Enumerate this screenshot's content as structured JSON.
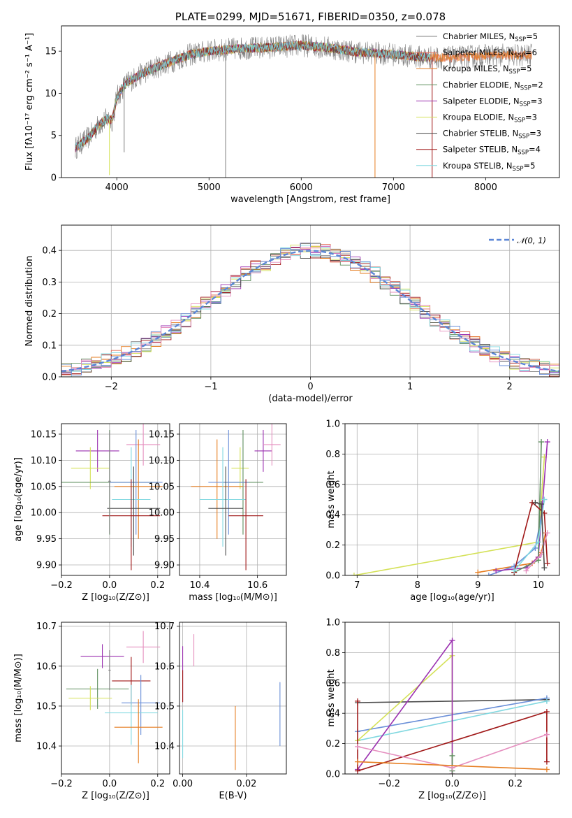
{
  "colors": {
    "chabrier_miles": "#808080",
    "salpeter_miles": "#e2725b",
    "kroupa_miles": "#e67e22",
    "chabrier_elodie": "#5f8f5f",
    "salpeter_elodie": "#9b30b0",
    "kroupa_elodie": "#d4e157",
    "chabrier_stelib": "#4a4a4a",
    "salpeter_stelib": "#a01818",
    "kroupa_stelib": "#80d8e0",
    "blue": "#6a8fd8",
    "pink": "#e58fbf",
    "normal": "#5b86d6"
  },
  "chart_data": [
    {
      "id": "spectrum",
      "type": "line",
      "title": "PLATE=0299, MJD=51671, FIBERID=0350, z=0.078",
      "xlabel": "wavelength [Angstrom, rest frame]",
      "ylabel": "Flux [fλ10⁻¹⁷ erg cm⁻² s⁻¹ A⁻¹]",
      "xlim": [
        3400,
        8800
      ],
      "ylim": [
        0,
        18
      ],
      "xticks": [
        "4000",
        "5000",
        "6000",
        "7000",
        "8000"
      ],
      "yticks": [
        "0",
        "5",
        "10",
        "15"
      ],
      "legend_position": "upper right",
      "legend": [
        {
          "name_base": "Chabrier MILES, N",
          "sub": "SSP",
          "val": "=5",
          "color": "chabrier_miles"
        },
        {
          "name_base": "Salpeter MILES, N",
          "sub": "SSP",
          "val": "=6",
          "color": "salpeter_miles"
        },
        {
          "name_base": "Kroupa MILES, N",
          "sub": "SSP",
          "val": "=5",
          "color": "kroupa_miles"
        },
        {
          "name_base": "Chabrier ELODIE, N",
          "sub": "SSP",
          "val": "=2",
          "color": "chabrier_elodie"
        },
        {
          "name_base": "Salpeter ELODIE, N",
          "sub": "SSP",
          "val": "=3",
          "color": "salpeter_elodie"
        },
        {
          "name_base": "Kroupa ELODIE, N",
          "sub": "SSP",
          "val": "=3",
          "color": "kroupa_elodie"
        },
        {
          "name_base": "Chabrier STELIB, N",
          "sub": "SSP",
          "val": "=3",
          "color": "chabrier_stelib"
        },
        {
          "name_base": "Salpeter STELIB, N",
          "sub": "SSP",
          "val": "=4",
          "color": "salpeter_stelib"
        },
        {
          "name_base": "Kroupa STELIB, N",
          "sub": "SSP",
          "val": "=5",
          "color": "kroupa_stelib"
        }
      ],
      "continuum_nodes": [
        [
          3550,
          3.5
        ],
        [
          3700,
          4.8
        ],
        [
          3800,
          6.2
        ],
        [
          3900,
          7.0
        ],
        [
          3950,
          6.8
        ],
        [
          4000,
          9.5
        ],
        [
          4100,
          11.2
        ],
        [
          4300,
          12.5
        ],
        [
          4500,
          13.4
        ],
        [
          4800,
          14.6
        ],
        [
          5000,
          15.0
        ],
        [
          5300,
          15.3
        ],
        [
          5600,
          15.4
        ],
        [
          6000,
          15.7
        ],
        [
          6300,
          15.4
        ],
        [
          6600,
          14.9
        ],
        [
          7000,
          14.6
        ],
        [
          7300,
          14.3
        ],
        [
          7600,
          14.2
        ],
        [
          8000,
          14.5
        ],
        [
          8500,
          14.5
        ]
      ],
      "glitches": [
        {
          "x": 5180,
          "y": 0,
          "color": "chabrier_miles"
        },
        {
          "x": 6800,
          "y": 0,
          "color": "kroupa_miles"
        },
        {
          "x": 7420,
          "y": 0,
          "color": "salpeter_stelib"
        },
        {
          "x": 3920,
          "y": 0.3,
          "color": "kroupa_elodie"
        },
        {
          "x": 4080,
          "y": 3.0,
          "color": "chabrier_miles"
        }
      ]
    },
    {
      "id": "residuals",
      "type": "histogram",
      "xlabel": "(data-model)/error",
      "ylabel": "Normed distribution",
      "xlim": [
        -2.5,
        2.5
      ],
      "ylim": [
        0,
        0.48
      ],
      "xticks": [
        "−2",
        "−1",
        "0",
        "1",
        "2"
      ],
      "yticks": [
        "0.0",
        "0.1",
        "0.2",
        "0.3",
        "0.4"
      ],
      "legend": {
        "label": "𝒩(0, 1)"
      },
      "bin_width": 0.1,
      "histogram_colors": [
        "chabrier_miles",
        "salpeter_miles",
        "kroupa_miles",
        "chabrier_elodie",
        "salpeter_elodie",
        "kroupa_elodie",
        "chabrier_stelib",
        "salpeter_stelib",
        "kroupa_stelib",
        "blue",
        "pink"
      ]
    },
    {
      "id": "age_vs_z",
      "type": "scatter",
      "xlabel": "Z [log₁₀(Z/Z⊙)]",
      "ylabel": "age  [log₁₀(age/yr)]",
      "xlim": [
        -0.2,
        0.25
      ],
      "ylim": [
        9.88,
        10.17
      ],
      "xticks": [
        "−0.2",
        "0.0",
        "0.2"
      ],
      "yticks": [
        "9.90",
        "9.95",
        "10.00",
        "10.05",
        "10.10",
        "10.15"
      ],
      "points": [
        {
          "x": -0.05,
          "y": 10.118,
          "xerr": 0.09,
          "yerr": [
            0.04,
            0.04
          ],
          "color": "salpeter_elodie"
        },
        {
          "x": -0.08,
          "y": 10.085,
          "xerr": 0.08,
          "yerr": [
            0.04,
            0.04
          ],
          "color": "kroupa_elodie"
        },
        {
          "x": 0.14,
          "y": 10.13,
          "xerr": 0.07,
          "yerr": [
            0.04,
            0.04
          ],
          "color": "pink"
        },
        {
          "x": 0.0,
          "y": 10.058,
          "xerr": 0.2,
          "yerr": [
            0.1,
            0.1
          ],
          "color": "chabrier_elodie"
        },
        {
          "x": 0.11,
          "y": 10.058,
          "xerr": 0.11,
          "yerr": [
            0.1,
            0.1
          ],
          "color": "blue"
        },
        {
          "x": 0.12,
          "y": 10.05,
          "xerr": 0.1,
          "yerr": [
            0.1,
            0.09
          ],
          "color": "kroupa_miles"
        },
        {
          "x": 0.09,
          "y": 10.025,
          "xerr": 0.08,
          "yerr": [
            0.09,
            0.1
          ],
          "color": "kroupa_stelib"
        },
        {
          "x": 0.1,
          "y": 10.008,
          "xerr": 0.11,
          "yerr": [
            0.09,
            0.08
          ],
          "color": "chabrier_stelib"
        },
        {
          "x": 0.09,
          "y": 9.994,
          "xerr": 0.12,
          "yerr": [
            0.104,
            0.07
          ],
          "color": "salpeter_stelib"
        },
        {
          "x": 0.0,
          "y": 10.06,
          "xerr": 0.005,
          "yerr": [
            0.1,
            0.095
          ],
          "color": "chabrier_miles"
        }
      ]
    },
    {
      "id": "age_vs_mass",
      "type": "scatter",
      "xlabel": "mass [log₁₀(M/M⊙)]",
      "xlim": [
        10.33,
        10.7
      ],
      "ylim": [
        9.88,
        10.17
      ],
      "xticks": [
        "10.4",
        "10.6"
      ],
      "yticks": [
        "9.90",
        "9.95",
        "10.00",
        "10.05",
        "10.10",
        "10.15"
      ],
      "points": [
        {
          "x": 10.62,
          "y": 10.118,
          "xerr": 0.03,
          "yerr": [
            0.04,
            0.04
          ],
          "color": "salpeter_elodie"
        },
        {
          "x": 10.65,
          "y": 10.13,
          "xerr": 0.03,
          "yerr": [
            0.04,
            0.04
          ],
          "color": "pink"
        },
        {
          "x": 10.54,
          "y": 10.085,
          "xerr": 0.03,
          "yerr": [
            0.04,
            0.04
          ],
          "color": "kroupa_elodie"
        },
        {
          "x": 10.55,
          "y": 10.058,
          "xerr": 0.07,
          "yerr": [
            0.1,
            0.1
          ],
          "color": "chabrier_elodie"
        },
        {
          "x": 10.46,
          "y": 10.05,
          "xerr": 0.09,
          "yerr": [
            0.1,
            0.09
          ],
          "color": "kroupa_miles"
        },
        {
          "x": 10.5,
          "y": 10.058,
          "xerr": 0.07,
          "yerr": [
            0.1,
            0.1
          ],
          "color": "blue"
        },
        {
          "x": 10.48,
          "y": 10.025,
          "xerr": 0.08,
          "yerr": [
            0.09,
            0.1
          ],
          "color": "kroupa_stelib"
        },
        {
          "x": 10.49,
          "y": 10.008,
          "xerr": 0.06,
          "yerr": [
            0.09,
            0.08
          ],
          "color": "chabrier_stelib"
        },
        {
          "x": 10.56,
          "y": 9.994,
          "xerr": 0.06,
          "yerr": [
            0.104,
            0.07
          ],
          "color": "salpeter_stelib"
        }
      ]
    },
    {
      "id": "weight_vs_age",
      "type": "line",
      "xlabel": "age  [log₁₀(age/yr)]",
      "ylabel": "mass weight",
      "xlim": [
        6.8,
        10.35
      ],
      "ylim": [
        0,
        1
      ],
      "xticks": [
        "7",
        "8",
        "9",
        "10"
      ],
      "yticks": [
        "0.0",
        "0.2",
        "0.4",
        "0.6",
        "0.8",
        "1.0"
      ],
      "series": [
        {
          "color": "kroupa_elodie",
          "points": [
            [
              6.95,
              0.0
            ],
            [
              10.0,
              0.22
            ],
            [
              10.1,
              0.78
            ]
          ]
        },
        {
          "color": "kroupa_miles",
          "points": [
            [
              9.0,
              0.02
            ],
            [
              9.9,
              0.08
            ],
            [
              10.05,
              0.15
            ],
            [
              10.12,
              0.28
            ]
          ]
        },
        {
          "color": "blue",
          "points": [
            [
              9.18,
              0.0
            ],
            [
              9.6,
              0.06
            ],
            [
              9.95,
              0.18
            ],
            [
              10.1,
              0.5
            ]
          ]
        },
        {
          "color": "salpeter_elodie",
          "points": [
            [
              9.3,
              0.03
            ],
            [
              9.8,
              0.05
            ],
            [
              10.0,
              0.12
            ],
            [
              10.15,
              0.88
            ]
          ]
        },
        {
          "color": "chabrier_elodie",
          "points": [
            [
              9.6,
              0.02
            ],
            [
              10.0,
              0.1
            ],
            [
              10.05,
              0.88
            ]
          ]
        },
        {
          "color": "salpeter_stelib",
          "points": [
            [
              9.6,
              0.02
            ],
            [
              9.9,
              0.48
            ],
            [
              10.1,
              0.41
            ],
            [
              10.15,
              0.08
            ]
          ]
        },
        {
          "color": "kroupa_stelib",
          "points": [
            [
              9.6,
              0.03
            ],
            [
              10.0,
              0.22
            ],
            [
              10.1,
              0.5
            ]
          ]
        },
        {
          "color": "pink",
          "points": [
            [
              9.8,
              0.03
            ],
            [
              10.05,
              0.14
            ],
            [
              10.15,
              0.28
            ]
          ]
        },
        {
          "color": "chabrier_stelib",
          "points": [
            [
              9.95,
              0.48
            ],
            [
              10.05,
              0.47
            ],
            [
              10.1,
              0.05
            ]
          ]
        }
      ]
    },
    {
      "id": "mass_vs_z",
      "type": "scatter",
      "xlabel": "Z [log₁₀(Z/Z⊙)]",
      "ylabel": "mass [log₁₀(M/M⊙)]",
      "xlim": [
        -0.2,
        0.25
      ],
      "ylim": [
        10.33,
        10.71
      ],
      "xticks": [
        "−0.2",
        "0.0",
        "0.2"
      ],
      "yticks": [
        "10.4",
        "10.5",
        "10.6",
        "10.7"
      ],
      "points": [
        {
          "x": -0.03,
          "y": 10.625,
          "xerr": 0.09,
          "yerr": [
            0.03,
            0.03
          ],
          "color": "salpeter_elodie"
        },
        {
          "x": 0.14,
          "y": 10.648,
          "xerr": 0.07,
          "yerr": [
            0.04,
            0.04
          ],
          "color": "pink"
        },
        {
          "x": 0.09,
          "y": 10.563,
          "xerr": 0.08,
          "yerr": [
            0.06,
            0.06
          ],
          "color": "salpeter_stelib"
        },
        {
          "x": -0.05,
          "y": 10.543,
          "xerr": 0.13,
          "yerr": [
            0.05,
            0.05
          ],
          "color": "chabrier_elodie"
        },
        {
          "x": -0.08,
          "y": 10.52,
          "xerr": 0.09,
          "yerr": [
            0.03,
            0.03
          ],
          "color": "kroupa_elodie"
        },
        {
          "x": 0.13,
          "y": 10.508,
          "xerr": 0.08,
          "yerr": [
            0.08,
            0.07
          ],
          "color": "blue"
        },
        {
          "x": 0.09,
          "y": 10.483,
          "xerr": 0.11,
          "yerr": [
            0.08,
            0.07
          ],
          "color": "kroupa_stelib"
        },
        {
          "x": 0.12,
          "y": 10.447,
          "xerr": 0.1,
          "yerr": [
            0.09,
            0.07
          ],
          "color": "kroupa_miles"
        },
        {
          "x": 0.0,
          "y": 10.59,
          "xerr": 0.005,
          "yerr": [
            0.05,
            0.05
          ],
          "color": "chabrier_miles"
        }
      ]
    },
    {
      "id": "mass_vs_ebv",
      "type": "scatter",
      "xlabel": "E(B-V)",
      "xlim": [
        -0.001,
        0.0325
      ],
      "ylim": [
        10.33,
        10.71
      ],
      "xticks": [
        "0.00",
        "0.02"
      ],
      "yticks": [
        "10.4",
        "10.5",
        "10.6",
        "10.7"
      ],
      "points": [
        {
          "x": 0.0035,
          "y": 10.64,
          "xerr": 0.0,
          "yerr": [
            0.04,
            0.04
          ],
          "color": "pink"
        },
        {
          "x": 0.0,
          "y": 10.59,
          "xerr": 0.0,
          "yerr": [
            0.08,
            0.06
          ],
          "color": "salpeter_elodie"
        },
        {
          "x": 0.0,
          "y": 10.55,
          "xerr": 0.0,
          "yerr": [
            0.04,
            0.04
          ],
          "color": "salpeter_stelib"
        },
        {
          "x": 0.0,
          "y": 10.43,
          "xerr": 0.0,
          "yerr": [
            0.06,
            0.06
          ],
          "color": "kroupa_stelib"
        },
        {
          "x": 0.0165,
          "y": 10.42,
          "xerr": 0.0,
          "yerr": [
            0.08,
            0.08
          ],
          "color": "kroupa_miles"
        },
        {
          "x": 0.0305,
          "y": 10.48,
          "xerr": 0.0,
          "yerr": [
            0.08,
            0.08
          ],
          "color": "blue"
        }
      ]
    },
    {
      "id": "weight_vs_z",
      "type": "line",
      "xlabel": "Z [log₁₀(Z/Z⊙)]",
      "ylabel": "mass weight",
      "xlim": [
        -0.34,
        0.34
      ],
      "ylim": [
        0,
        1
      ],
      "xticks": [
        "−0.2",
        "0.0",
        "0.2"
      ],
      "yticks": [
        "0.0",
        "0.2",
        "0.4",
        "0.6",
        "0.8",
        "1.0"
      ],
      "series": [
        {
          "color": "chabrier_stelib",
          "points": [
            [
              -0.3,
              0.47
            ],
            [
              0.3,
              0.49
            ]
          ]
        },
        {
          "color": "blue",
          "points": [
            [
              -0.3,
              0.28
            ],
            [
              0.3,
              0.5
            ]
          ]
        },
        {
          "color": "kroupa_stelib",
          "points": [
            [
              -0.3,
              0.22
            ],
            [
              0.3,
              0.48
            ]
          ]
        },
        {
          "color": "kroupa_elodie",
          "points": [
            [
              -0.3,
              0.22
            ],
            [
              0.0,
              0.78
            ],
            [
              0.0,
              0.0
            ]
          ]
        },
        {
          "color": "salpeter_elodie",
          "points": [
            [
              -0.3,
              0.03
            ],
            [
              0.0,
              0.88
            ],
            [
              0.0,
              0.0
            ]
          ]
        },
        {
          "color": "chabrier_elodie",
          "points": [
            [
              0.0,
              0.02
            ],
            [
              0.0,
              0.12
            ]
          ]
        },
        {
          "color": "salpeter_stelib",
          "points": [
            [
              -0.3,
              0.48
            ],
            [
              -0.3,
              0.02
            ],
            [
              0.3,
              0.41
            ],
            [
              0.3,
              0.08
            ]
          ]
        },
        {
          "color": "pink",
          "points": [
            [
              -0.3,
              0.18
            ],
            [
              0.0,
              0.04
            ],
            [
              0.3,
              0.26
            ]
          ]
        },
        {
          "color": "kroupa_miles",
          "points": [
            [
              -0.3,
              0.08
            ],
            [
              0.3,
              0.03
            ]
          ]
        }
      ]
    }
  ]
}
